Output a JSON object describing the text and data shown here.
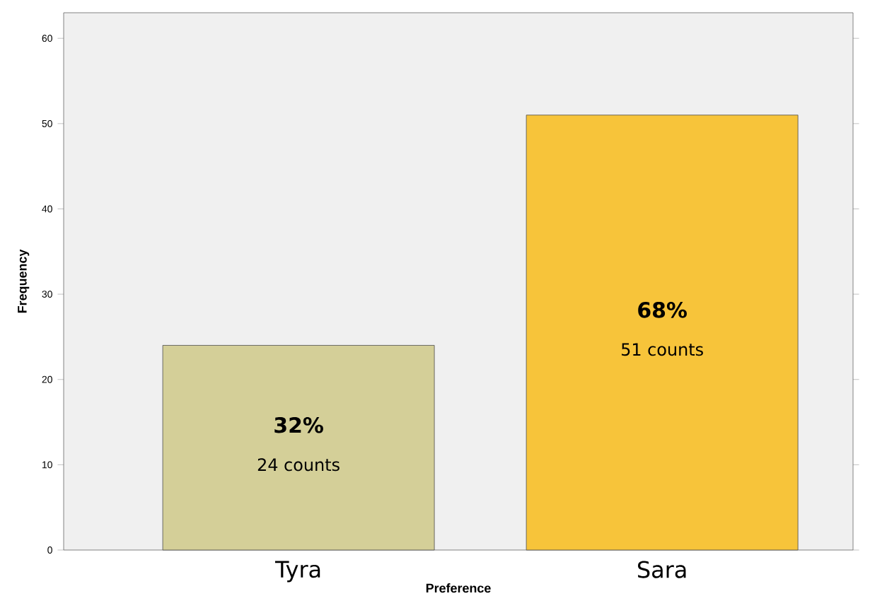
{
  "chart_data": {
    "type": "bar",
    "categories": [
      "Tyra",
      "Sara"
    ],
    "values": [
      24,
      51
    ],
    "colors": [
      "#d4cf98",
      "#f7c43a"
    ],
    "xlabel": "Preference",
    "ylabel": "Frequency",
    "ylim": [
      0,
      63
    ],
    "yticks": [
      0,
      10,
      20,
      30,
      40,
      50,
      60
    ],
    "grid": false,
    "annotations": [
      "32%",
      "24 counts",
      "68%",
      "51 counts"
    ]
  }
}
